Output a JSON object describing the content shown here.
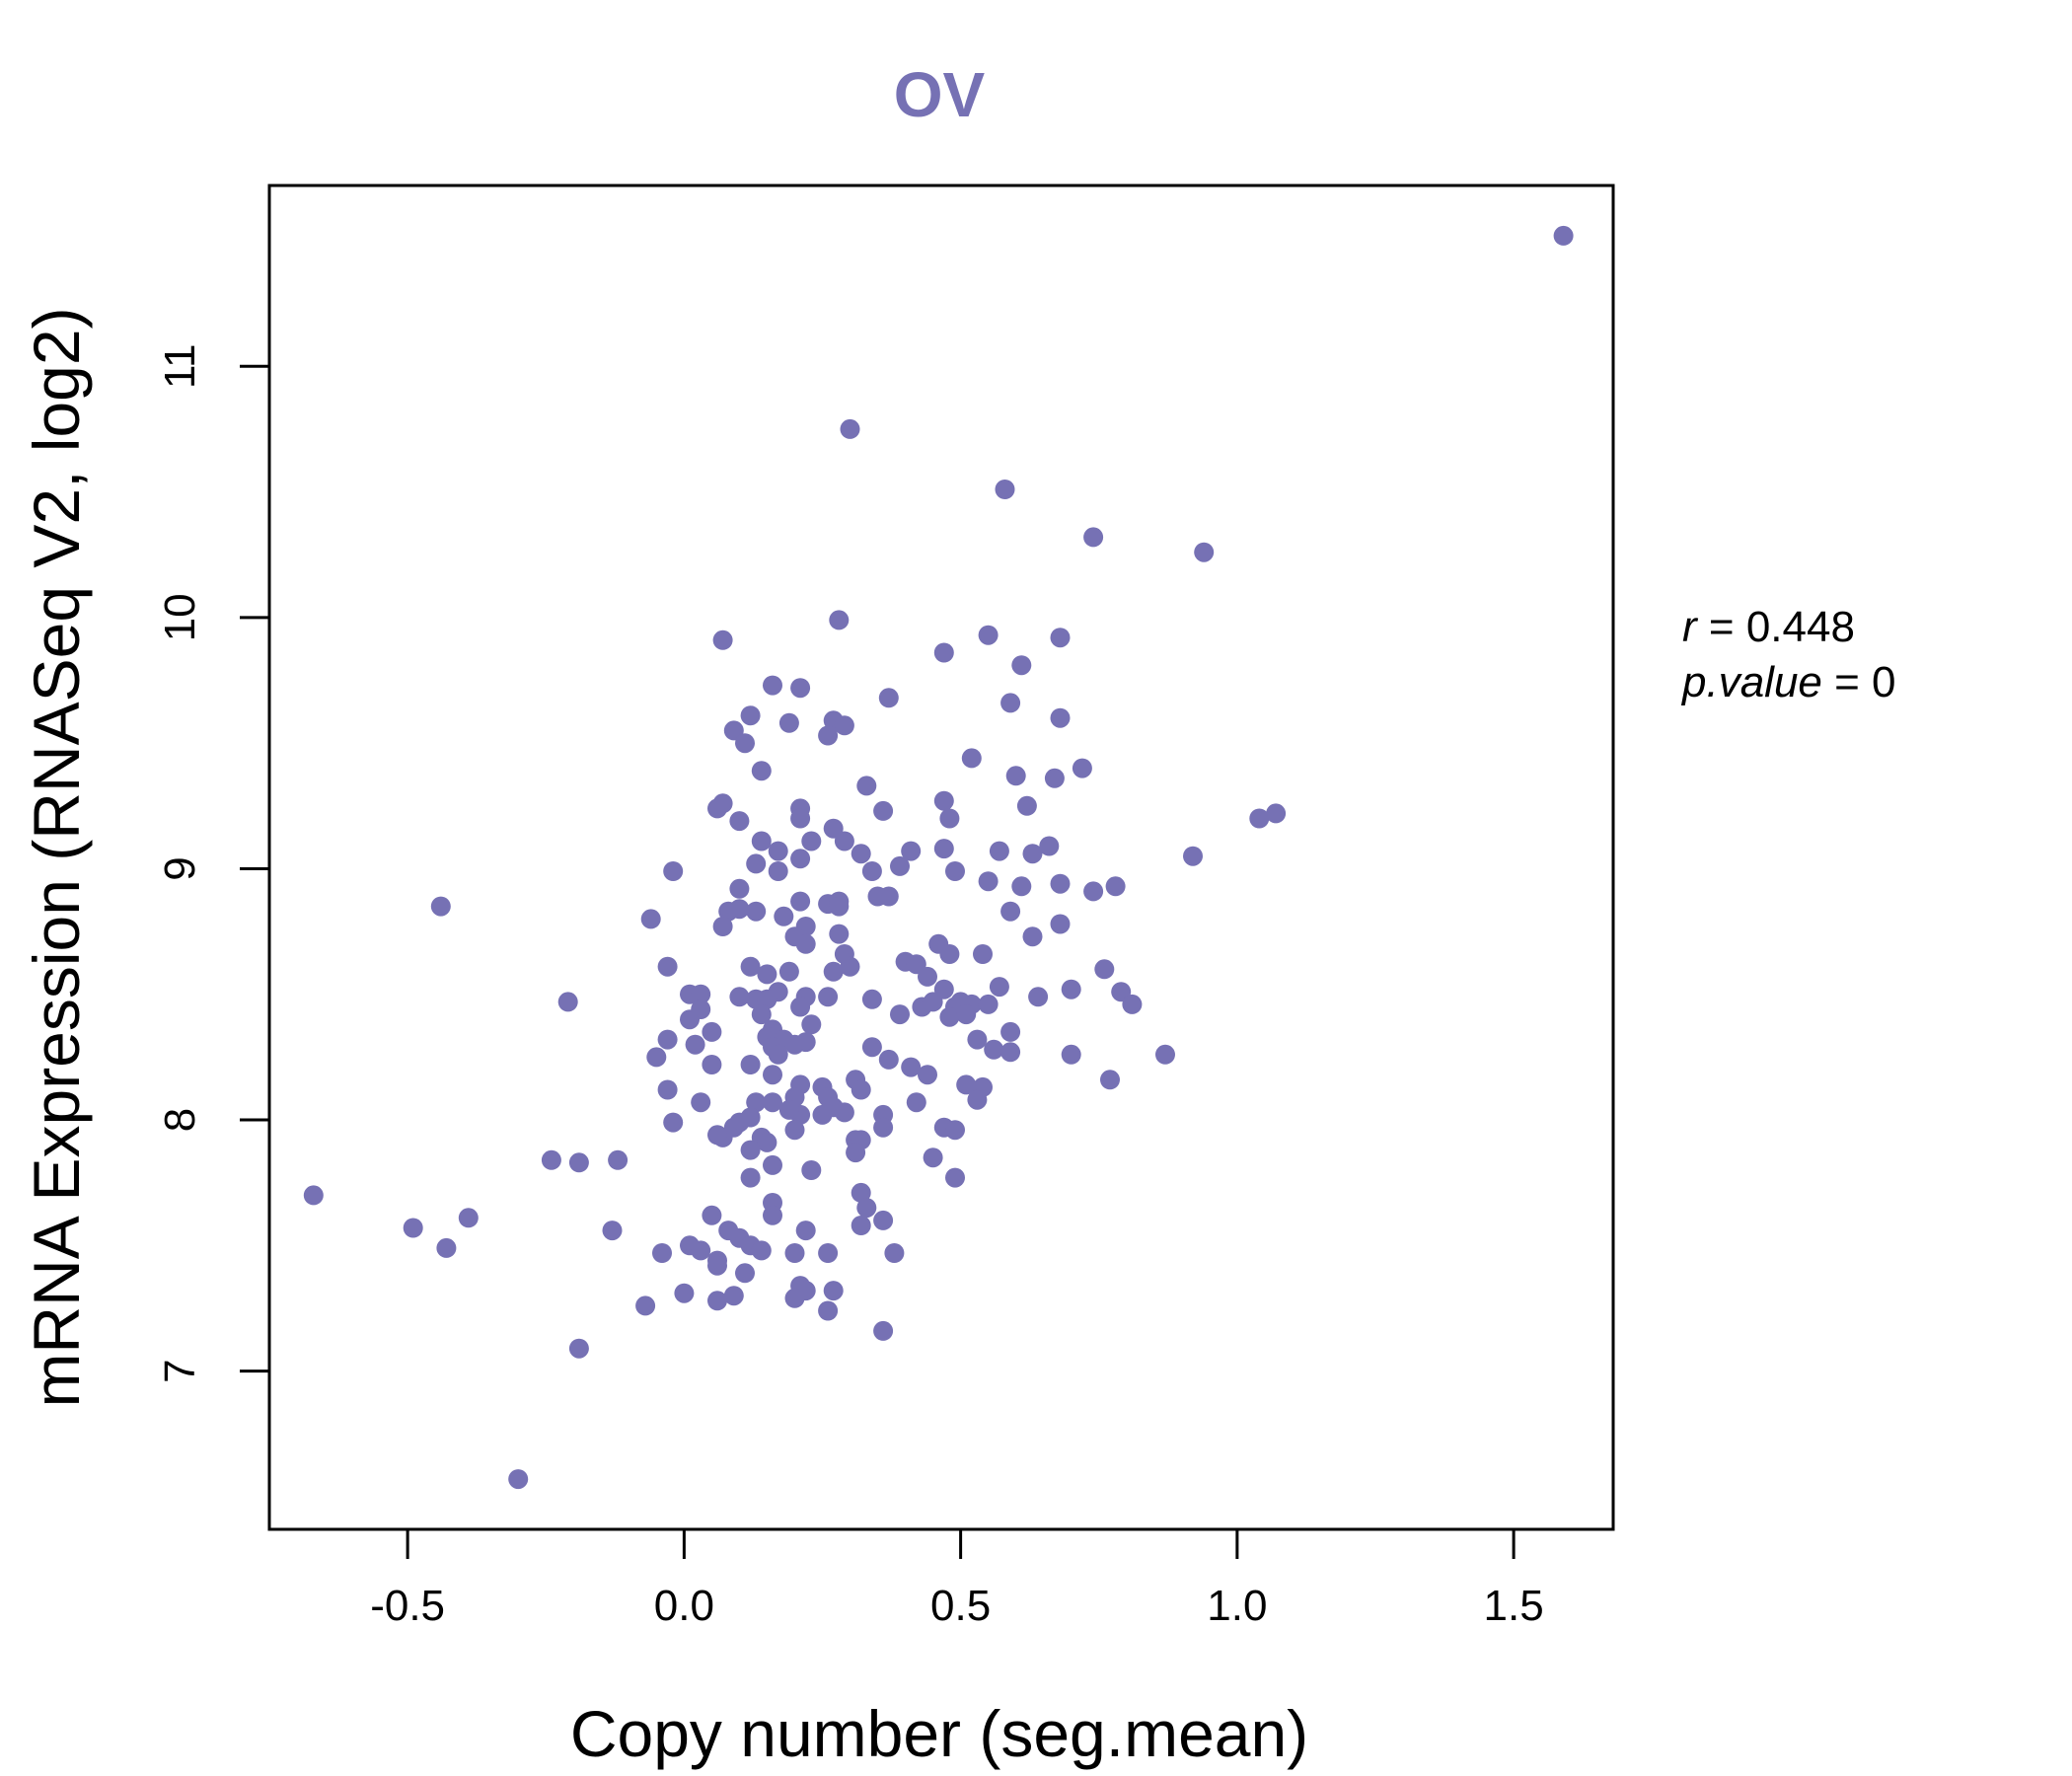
{
  "colors": {
    "point": "#7671b4",
    "title": "#7671b4",
    "axis": "#000000"
  },
  "chart_data": {
    "type": "scatter",
    "title": "OV",
    "xlabel": "Copy number (seg.mean)",
    "ylabel": "mRNA Expression (RNASeq V2, log2)",
    "xlim": [
      -0.75,
      1.68
    ],
    "ylim": [
      6.37,
      11.72
    ],
    "xticks": [
      -0.5,
      0.0,
      0.5,
      1.0,
      1.5
    ],
    "xtick_labels": [
      "-0.5",
      "0.0",
      "0.5",
      "1.0",
      "1.5"
    ],
    "yticks": [
      7,
      8,
      9,
      10,
      11
    ],
    "ytick_labels": [
      "7",
      "8",
      "9",
      "10",
      "11"
    ],
    "stats": {
      "r_label": "r",
      "r_value": "0.448",
      "p_label": "p.value",
      "p_value": "0"
    },
    "points": [
      [
        1.59,
        11.52
      ],
      [
        0.3,
        10.75
      ],
      [
        0.58,
        10.51
      ],
      [
        0.74,
        10.32
      ],
      [
        0.94,
        10.26
      ],
      [
        0.28,
        9.99
      ],
      [
        0.07,
        9.91
      ],
      [
        0.55,
        9.93
      ],
      [
        0.68,
        9.92
      ],
      [
        0.47,
        9.86
      ],
      [
        0.61,
        9.81
      ],
      [
        0.16,
        9.73
      ],
      [
        0.21,
        9.72
      ],
      [
        0.37,
        9.68
      ],
      [
        0.59,
        9.66
      ],
      [
        0.12,
        9.61
      ],
      [
        0.27,
        9.59
      ],
      [
        0.29,
        9.57
      ],
      [
        0.19,
        9.58
      ],
      [
        0.68,
        9.6
      ],
      [
        0.09,
        9.55
      ],
      [
        0.11,
        9.5
      ],
      [
        0.26,
        9.53
      ],
      [
        0.52,
        9.44
      ],
      [
        0.14,
        9.39
      ],
      [
        0.72,
        9.4
      ],
      [
        0.6,
        9.37
      ],
      [
        0.67,
        9.36
      ],
      [
        0.33,
        9.33
      ],
      [
        0.47,
        9.27
      ],
      [
        0.07,
        9.26
      ],
      [
        0.06,
        9.24
      ],
      [
        0.21,
        9.24
      ],
      [
        0.36,
        9.23
      ],
      [
        0.62,
        9.25
      ],
      [
        0.48,
        9.2
      ],
      [
        0.1,
        9.19
      ],
      [
        0.21,
        9.2
      ],
      [
        0.27,
        9.16
      ],
      [
        1.04,
        9.2
      ],
      [
        1.07,
        9.22
      ],
      [
        0.14,
        9.11
      ],
      [
        0.23,
        9.11
      ],
      [
        0.29,
        9.11
      ],
      [
        0.32,
        9.06
      ],
      [
        0.41,
        9.07
      ],
      [
        0.47,
        9.08
      ],
      [
        0.66,
        9.09
      ],
      [
        0.57,
        9.07
      ],
      [
        0.63,
        9.06
      ],
      [
        0.92,
        9.05
      ],
      [
        0.17,
        9.07
      ],
      [
        0.21,
        9.04
      ],
      [
        0.13,
        9.02
      ],
      [
        0.39,
        9.01
      ],
      [
        0.34,
        8.99
      ],
      [
        -0.02,
        8.99
      ],
      [
        0.17,
        8.99
      ],
      [
        0.49,
        8.99
      ],
      [
        0.55,
        8.95
      ],
      [
        0.61,
        8.93
      ],
      [
        0.68,
        8.94
      ],
      [
        0.78,
        8.93
      ],
      [
        0.1,
        8.92
      ],
      [
        0.35,
        8.89
      ],
      [
        0.37,
        8.89
      ],
      [
        0.74,
        8.91
      ],
      [
        -0.44,
        8.85
      ],
      [
        0.21,
        8.87
      ],
      [
        0.26,
        8.86
      ],
      [
        0.28,
        8.87
      ],
      [
        0.08,
        8.83
      ],
      [
        0.13,
        8.83
      ],
      [
        0.18,
        8.81
      ],
      [
        0.28,
        8.85
      ],
      [
        0.59,
        8.83
      ],
      [
        0.1,
        8.84
      ],
      [
        -0.06,
        8.8
      ],
      [
        0.07,
        8.77
      ],
      [
        0.22,
        8.77
      ],
      [
        0.68,
        8.78
      ],
      [
        0.2,
        8.73
      ],
      [
        0.28,
        8.74
      ],
      [
        0.63,
        8.73
      ],
      [
        0.46,
        8.7
      ],
      [
        0.22,
        8.7
      ],
      [
        0.29,
        8.66
      ],
      [
        0.48,
        8.66
      ],
      [
        0.54,
        8.66
      ],
      [
        0.4,
        8.63
      ],
      [
        0.42,
        8.62
      ],
      [
        0.12,
        8.61
      ],
      [
        0.3,
        8.61
      ],
      [
        -0.03,
        8.61
      ],
      [
        0.19,
        8.59
      ],
      [
        0.15,
        8.58
      ],
      [
        0.27,
        8.59
      ],
      [
        0.76,
        8.6
      ],
      [
        0.44,
        8.57
      ],
      [
        0.47,
        8.52
      ],
      [
        0.5,
        8.47
      ],
      [
        0.57,
        8.53
      ],
      [
        0.7,
        8.52
      ],
      [
        0.79,
        8.51
      ],
      [
        0.81,
        8.46
      ],
      [
        0.64,
        8.49
      ],
      [
        0.26,
        8.49
      ],
      [
        0.17,
        8.51
      ],
      [
        0.13,
        8.48
      ],
      [
        0.15,
        8.48
      ],
      [
        0.22,
        8.49
      ],
      [
        0.34,
        8.48
      ],
      [
        0.01,
        8.5
      ],
      [
        0.03,
        8.5
      ],
      [
        0.1,
        8.49
      ],
      [
        -0.21,
        8.47
      ],
      [
        0.21,
        8.45
      ],
      [
        0.43,
        8.45
      ],
      [
        0.45,
        8.47
      ],
      [
        0.49,
        8.45
      ],
      [
        0.52,
        8.46
      ],
      [
        0.55,
        8.46
      ],
      [
        0.39,
        8.42
      ],
      [
        0.48,
        8.41
      ],
      [
        0.51,
        8.42
      ],
      [
        0.01,
        8.4
      ],
      [
        0.14,
        8.42
      ],
      [
        0.03,
        8.44
      ],
      [
        0.23,
        8.38
      ],
      [
        0.16,
        8.36
      ],
      [
        0.05,
        8.35
      ],
      [
        0.59,
        8.35
      ],
      [
        -0.03,
        8.32
      ],
      [
        0.15,
        8.33
      ],
      [
        0.18,
        8.32
      ],
      [
        0.22,
        8.31
      ],
      [
        0.2,
        8.3
      ],
      [
        0.34,
        8.29
      ],
      [
        0.53,
        8.32
      ],
      [
        0.56,
        8.28
      ],
      [
        0.02,
        8.3
      ],
      [
        0.16,
        8.29
      ],
      [
        0.59,
        8.27
      ],
      [
        0.87,
        8.26
      ],
      [
        0.7,
        8.26
      ],
      [
        -0.05,
        8.25
      ],
      [
        0.17,
        8.26
      ],
      [
        0.37,
        8.24
      ],
      [
        0.05,
        8.22
      ],
      [
        0.12,
        8.22
      ],
      [
        0.41,
        8.21
      ],
      [
        0.44,
        8.18
      ],
      [
        0.16,
        8.18
      ],
      [
        0.77,
        8.16
      ],
      [
        0.21,
        8.14
      ],
      [
        0.25,
        8.13
      ],
      [
        0.31,
        8.16
      ],
      [
        0.51,
        8.14
      ],
      [
        0.54,
        8.13
      ],
      [
        -0.03,
        8.12
      ],
      [
        0.32,
        8.12
      ],
      [
        0.26,
        8.09
      ],
      [
        0.2,
        8.09
      ],
      [
        0.13,
        8.07
      ],
      [
        0.16,
        8.07
      ],
      [
        0.03,
        8.07
      ],
      [
        0.27,
        8.05
      ],
      [
        0.21,
        8.02
      ],
      [
        0.29,
        8.03
      ],
      [
        0.42,
        8.07
      ],
      [
        0.36,
        8.02
      ],
      [
        0.12,
        8.01
      ],
      [
        0.19,
        8.04
      ],
      [
        0.25,
        8.02
      ],
      [
        0.53,
        8.08
      ],
      [
        0.36,
        7.97
      ],
      [
        0.1,
        7.99
      ],
      [
        0.09,
        7.97
      ],
      [
        0.2,
        7.96
      ],
      [
        0.47,
        7.97
      ],
      [
        0.49,
        7.96
      ],
      [
        -0.02,
        7.99
      ],
      [
        0.07,
        7.93
      ],
      [
        0.06,
        7.94
      ],
      [
        0.14,
        7.93
      ],
      [
        0.15,
        7.91
      ],
      [
        0.31,
        7.92
      ],
      [
        0.32,
        7.92
      ],
      [
        0.12,
        7.88
      ],
      [
        0.31,
        7.87
      ],
      [
        0.45,
        7.85
      ],
      [
        -0.24,
        7.84
      ],
      [
        -0.19,
        7.83
      ],
      [
        -0.12,
        7.84
      ],
      [
        0.16,
        7.82
      ],
      [
        0.23,
        7.8
      ],
      [
        0.49,
        7.77
      ],
      [
        0.12,
        7.77
      ],
      [
        -0.67,
        7.7
      ],
      [
        0.32,
        7.71
      ],
      [
        0.16,
        7.67
      ],
      [
        0.33,
        7.65
      ],
      [
        0.05,
        7.62
      ],
      [
        0.16,
        7.62
      ],
      [
        -0.49,
        7.57
      ],
      [
        -0.39,
        7.61
      ],
      [
        0.36,
        7.6
      ],
      [
        0.32,
        7.58
      ],
      [
        -0.13,
        7.56
      ],
      [
        0.08,
        7.56
      ],
      [
        0.22,
        7.56
      ],
      [
        0.1,
        7.53
      ],
      [
        0.12,
        7.5
      ],
      [
        0.01,
        7.5
      ],
      [
        0.03,
        7.48
      ],
      [
        0.14,
        7.48
      ],
      [
        -0.43,
        7.49
      ],
      [
        -0.04,
        7.47
      ],
      [
        0.2,
        7.47
      ],
      [
        0.26,
        7.47
      ],
      [
        0.38,
        7.47
      ],
      [
        0.06,
        7.44
      ],
      [
        0.06,
        7.42
      ],
      [
        0.11,
        7.39
      ],
      [
        0.21,
        7.34
      ],
      [
        0.22,
        7.32
      ],
      [
        0.27,
        7.32
      ],
      [
        0.0,
        7.31
      ],
      [
        0.09,
        7.3
      ],
      [
        0.06,
        7.28
      ],
      [
        0.2,
        7.29
      ],
      [
        -0.07,
        7.26
      ],
      [
        0.26,
        7.24
      ],
      [
        0.36,
        7.16
      ],
      [
        -0.19,
        7.09
      ],
      [
        -0.3,
        6.57
      ]
    ]
  }
}
